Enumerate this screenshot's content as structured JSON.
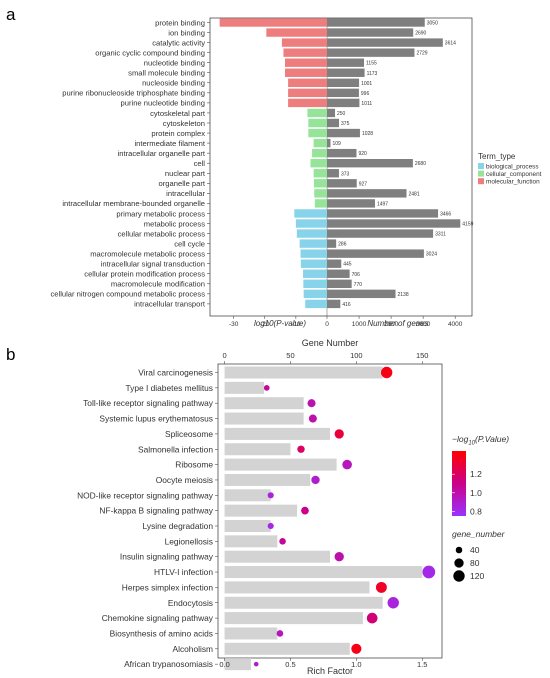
{
  "panels": {
    "a": "a",
    "b": "b"
  },
  "chart_data": [
    {
      "type": "bar",
      "panel": "a",
      "categories": [
        "protein binding",
        "ion binding",
        "catalytic activity",
        "organic cyclic compound binding",
        "nucleotide binding",
        "small molecule binding",
        "nucleoside binding",
        "purine ribonucleoside triphosphate binding",
        "purine nucleotide binding",
        "cytoskeletal part",
        "cytoskeleton",
        "protein complex",
        "intermediate filament",
        "intracellular organelle part",
        "cell",
        "nuclear part",
        "organelle part",
        "intracellular",
        "intracellular membrane-bounded organelle",
        "primary metabolic process",
        "metabolic process",
        "cellular metabolic process",
        "cell cycle",
        "macromolecule metabolic process",
        "intracellular signal transduction",
        "cellular protein modification process",
        "macromolecule modification",
        "cellular nitrogen compound metabolic process",
        "intracellular transport"
      ],
      "term_type": [
        "molecular_function",
        "molecular_function",
        "molecular_function",
        "molecular_function",
        "molecular_function",
        "molecular_function",
        "molecular_function",
        "molecular_function",
        "molecular_function",
        "cellular_component",
        "cellular_component",
        "cellular_component",
        "cellular_component",
        "cellular_component",
        "cellular_component",
        "cellular_component",
        "cellular_component",
        "cellular_component",
        "cellular_component",
        "biological_process",
        "biological_process",
        "biological_process",
        "biological_process",
        "biological_process",
        "biological_process",
        "biological_process",
        "biological_process",
        "biological_process",
        "biological_process"
      ],
      "series": [
        {
          "values": [
            -34.5,
            -19.5,
            -14.5,
            -14.0,
            -13.5,
            -13.5,
            -12.5,
            -12.5,
            -12.5,
            -6.3,
            -6.0,
            -6.0,
            -4.3,
            -4.8,
            -5.3,
            -4.3,
            -4.2,
            -4.1,
            -3.9,
            -10.5,
            -10.0,
            -9.7,
            -8.8,
            -8.5,
            -8.4,
            -7.7,
            -7.6,
            -7.5,
            -7.0
          ]
        },
        {
          "values": [
            3050,
            2690,
            3614,
            2729,
            1155,
            1173,
            1001,
            996,
            1011,
            250,
            375,
            1028,
            109,
            920,
            2680,
            373,
            927,
            2481,
            1497,
            3466,
            4159,
            3311,
            286,
            3024,
            445,
            706,
            770,
            2138,
            416
          ],
          "data_labels": [
            "3050",
            "2690",
            "3614",
            "2729",
            "1155",
            "1173",
            "1001",
            "996",
            "1011",
            "250",
            "375",
            "1028",
            "109",
            "920",
            "2680",
            "373",
            "927",
            "2481",
            "1497",
            "3466",
            "4159",
            "3311",
            "286",
            "3024",
            "445",
            "706",
            "770",
            "2138",
            "416"
          ]
        }
      ],
      "xlabel_left": "log10(P-value)",
      "xlabel_right": "Number of genes",
      "x_ticks_left": [
        "-30",
        "-20",
        "-10",
        "0"
      ],
      "x_ticks_left_values": [
        -30,
        -20,
        -10,
        0
      ],
      "xlim_left": [
        -36,
        0
      ],
      "x_ticks_right": [
        "1000",
        "2000",
        "3000",
        "4000"
      ],
      "x_ticks_right_values": [
        1000,
        2000,
        3000,
        4000
      ],
      "xlim_right": [
        0,
        4400
      ],
      "legend": {
        "title": "Term_type",
        "placement": "right",
        "items": [
          "biological_process",
          "cellular_component",
          "molecular_function"
        ]
      },
      "colors": {
        "biological_process": "#87d3ea",
        "cellular_component": "#95e49a",
        "molecular_function": "#ee7d7d",
        "count_bar": "#7f7f7f"
      },
      "grid": false
    },
    {
      "type": "scatter",
      "panel": "b",
      "categories": [
        "Viral carcinogenesis",
        "Type I diabetes mellitus",
        "Toll-like receptor signaling pathway",
        "Systemic lupus erythematosus",
        "Spliceosome",
        "Salmonella infection",
        "Ribosome",
        "Oocyte meiosis",
        "NOD-like receptor signaling pathway",
        "NF-kappa B signaling pathway",
        "Lysine degradation",
        "Legionellosis",
        "Insulin signaling pathway",
        "HTLV-I infection",
        "Herpes simplex infection",
        "Endocytosis",
        "Chemokine signaling pathway",
        "Biosynthesis of amino acids",
        "Alcoholism",
        "African trypanosomiasis"
      ],
      "gene_number": [
        120,
        30,
        60,
        60,
        80,
        50,
        85,
        65,
        35,
        55,
        35,
        40,
        80,
        150,
        110,
        120,
        105,
        40,
        95,
        20
      ],
      "rich_factor": [
        1.23,
        0.32,
        0.66,
        0.67,
        0.87,
        0.58,
        0.93,
        0.69,
        0.35,
        0.61,
        0.35,
        0.44,
        0.87,
        1.55,
        1.19,
        1.28,
        1.12,
        0.42,
        1.0,
        0.24
      ],
      "neg_log10_p": [
        1.4,
        1.05,
        0.98,
        1.0,
        1.3,
        1.2,
        0.95,
        0.9,
        0.85,
        1.1,
        0.82,
        1.05,
        1.0,
        0.82,
        1.35,
        0.85,
        1.15,
        0.95,
        1.4,
        0.9
      ],
      "xlabel": "Rich Factor",
      "x2label": "Gene Number",
      "x_ticks": [
        "0.0",
        "0.5",
        "1.0",
        "1.5"
      ],
      "x_ticks_values": [
        0,
        0.5,
        1.0,
        1.5
      ],
      "xlim": [
        -0.05,
        1.65
      ],
      "x2_ticks": [
        "0",
        "50",
        "100",
        "150"
      ],
      "x2_ticks_values": [
        0,
        50,
        100,
        150
      ],
      "x2lim": [
        -5,
        165
      ],
      "color_legend": {
        "title": "−log10(P.Value)",
        "title_main": "−log",
        "title_sub": "10",
        "title_tail": "(P.Value)",
        "ticks": [
          "1.2",
          "1.0",
          "0.8"
        ],
        "tick_values": [
          1.2,
          1.0,
          0.8
        ],
        "range": [
          0.75,
          1.45
        ],
        "color_high": "#ff0000",
        "color_mid": "#cc0088",
        "color_low": "#9933ff"
      },
      "size_legend": {
        "title": "gene_number",
        "items": [
          "40",
          "80",
          "120"
        ],
        "item_values": [
          40,
          80,
          120
        ]
      },
      "bar_color": "#d3d3d3",
      "grid": false
    }
  ]
}
